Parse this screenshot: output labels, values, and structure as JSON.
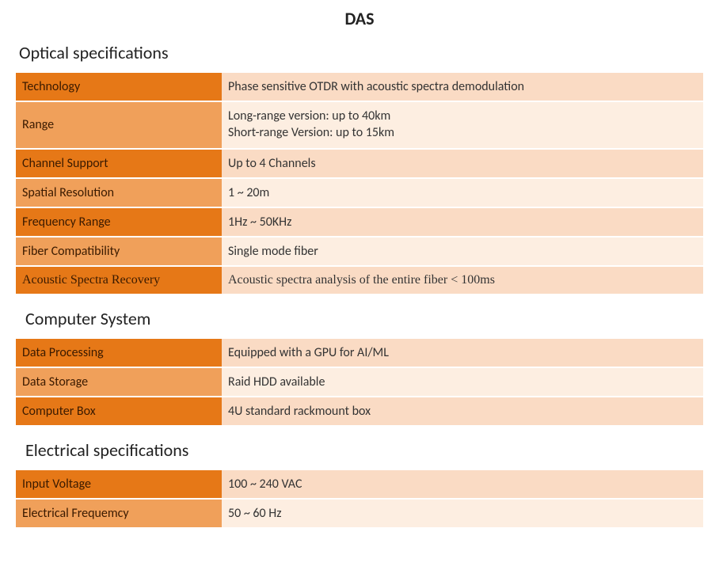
{
  "title": "DAS",
  "colors": {
    "label_dark": "#e67817",
    "label_light": "#f0a05a",
    "value_dark": "#fadbc4",
    "value_light": "#fdeee1",
    "text_label": "#3a1a00",
    "text_value": "#333333"
  },
  "sections": [
    {
      "title": "Optical specifications",
      "indent": false,
      "rows": [
        {
          "label": "Technology",
          "value": "Phase sensitive OTDR with acoustic spectra demodulation",
          "shade": "dark"
        },
        {
          "label": "Range",
          "value": "Long-range version: up to 40km",
          "value2": "Short-range Version: up to 15km",
          "shade": "light"
        },
        {
          "label": "Channel Support",
          "value": "Up to 4 Channels",
          "shade": "dark"
        },
        {
          "label": "Spatial Resolution",
          "value": "1 ~ 20m",
          "shade": "light"
        },
        {
          "label": "Frequency Range",
          "value": "1Hz ~ 50KHz",
          "shade": "dark"
        },
        {
          "label": "Fiber Compatibility",
          "value": "Single mode fiber",
          "shade": "light"
        },
        {
          "label": "Acoustic Spectra Recovery",
          "value": "Acoustic spectra analysis of the entire fiber < 100ms",
          "shade": "dark",
          "serif": true
        }
      ]
    },
    {
      "title": "Computer System",
      "indent": true,
      "rows": [
        {
          "label": "Data Processing",
          "value": "Equipped with a GPU for AI/ML",
          "shade": "dark"
        },
        {
          "label": "Data Storage",
          "value": "Raid HDD available",
          "shade": "light"
        },
        {
          "label": "Computer Box",
          "value": "4U standard rackmount box",
          "shade": "dark"
        }
      ]
    },
    {
      "title": "Electrical specifications",
      "indent": true,
      "rows": [
        {
          "label": "Input Voltage",
          "value": "100 ~ 240 VAC",
          "shade": "dark"
        },
        {
          "label": "Electrical Frequemcy",
          "value": "50 ~ 60 Hz",
          "shade": "light"
        }
      ]
    }
  ]
}
